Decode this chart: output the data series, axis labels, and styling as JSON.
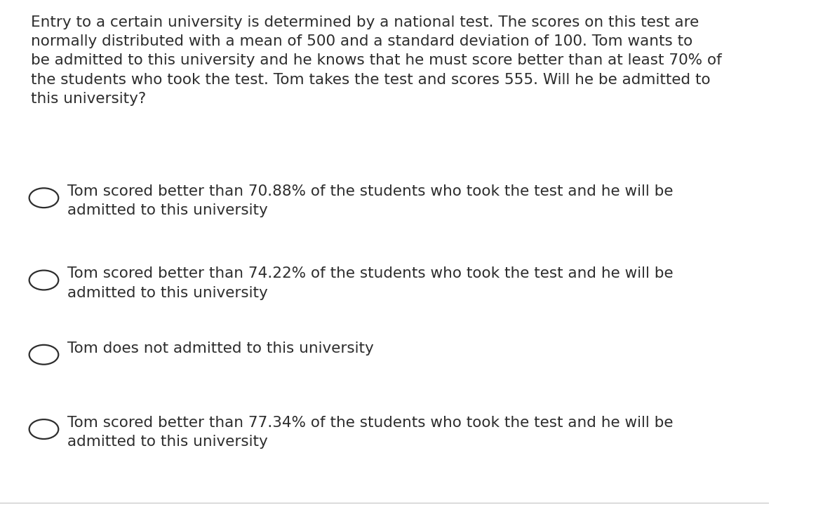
{
  "background_color": "#ffffff",
  "question_text": "Entry to a certain university is determined by a national test. The scores on this test are\nnormally distributed with a mean of 500 and a standard deviation of 100. Tom wants to\nbe admitted to this university and he knows that he must score better than at least 70% of\nthe students who took the test. Tom takes the test and scores 555. Will he be admitted to\nthis university?",
  "options": [
    "Tom scored better than 70.88% of the students who took the test and he will be\nadmitted to this university",
    "Tom scored better than 74.22% of the students who took the test and he will be\nadmitted to this university",
    "Tom does not admitted to this university",
    "Tom scored better than 77.34% of the students who took the test and he will be\nadmitted to this university"
  ],
  "text_color": "#2d2d2d",
  "font_size_question": 15.5,
  "font_size_options": 15.5,
  "circle_color": "#2d2d2d",
  "bottom_line_color": "#cccccc"
}
